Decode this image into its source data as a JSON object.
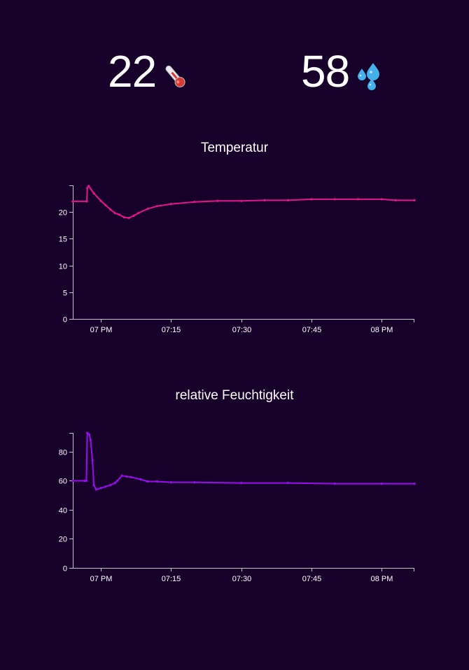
{
  "stats": {
    "temperature": {
      "value": "22",
      "icon": "thermometer-icon"
    },
    "humidity": {
      "value": "58",
      "icon": "droplets-icon"
    }
  },
  "chart_data": [
    {
      "type": "line",
      "title": "Temperatur",
      "xlabel": "",
      "ylabel": "",
      "color": "#e3158f",
      "ylim": [
        0,
        25
      ],
      "yticks": [
        0,
        5,
        10,
        15,
        20
      ],
      "xlim": [
        -6,
        67
      ],
      "xticks": [
        {
          "t": 0,
          "label": "07 PM"
        },
        {
          "t": 15,
          "label": "07:15"
        },
        {
          "t": 30,
          "label": "07:30"
        },
        {
          "t": 45,
          "label": "07:45"
        },
        {
          "t": 60,
          "label": "08 PM"
        }
      ],
      "grid": false,
      "series": [
        {
          "x": [
            -6,
            -3,
            -2.9,
            -2.6,
            -1.5,
            0,
            1,
            2,
            3,
            4,
            5,
            6,
            7,
            8,
            10,
            12,
            15,
            20,
            25,
            30,
            35,
            40,
            45,
            50,
            55,
            60,
            63,
            67
          ],
          "y": [
            22.0,
            22.0,
            24.5,
            24.9,
            23.5,
            22.1,
            21.3,
            20.5,
            19.8,
            19.5,
            19.0,
            18.9,
            19.3,
            19.8,
            20.6,
            21.1,
            21.5,
            21.9,
            22.1,
            22.1,
            22.2,
            22.2,
            22.4,
            22.4,
            22.4,
            22.4,
            22.2,
            22.2
          ]
        }
      ]
    },
    {
      "type": "line",
      "title": "relative Feuchtigkeit",
      "xlabel": "",
      "ylabel": "",
      "color": "#9b0cf0",
      "ylim": [
        0,
        93
      ],
      "yticks": [
        0,
        20,
        40,
        60,
        80
      ],
      "xlim": [
        -6,
        67
      ],
      "xticks": [
        {
          "t": 0,
          "label": "07 PM"
        },
        {
          "t": 15,
          "label": "07:15"
        },
        {
          "t": 30,
          "label": "07:30"
        },
        {
          "t": 45,
          "label": "07:45"
        },
        {
          "t": 60,
          "label": "08 PM"
        }
      ],
      "grid": false,
      "series": [
        {
          "x": [
            -6,
            -3.5,
            -3.1,
            -2.9,
            -2.5,
            -2.2,
            -1.8,
            -1.5,
            -1,
            0,
            1,
            2,
            3,
            3.5,
            4.5,
            5.5,
            6.5,
            8.5,
            10,
            12,
            15,
            20,
            30,
            40,
            50,
            60,
            67
          ],
          "y": [
            60,
            60,
            60,
            93,
            92,
            88,
            74,
            57,
            54,
            55,
            56,
            57,
            58.5,
            60,
            63.5,
            63,
            62.5,
            61,
            59.5,
            59.5,
            59.0,
            59.0,
            58.5,
            58.5,
            58.0,
            58.0,
            58.0
          ]
        }
      ]
    }
  ]
}
